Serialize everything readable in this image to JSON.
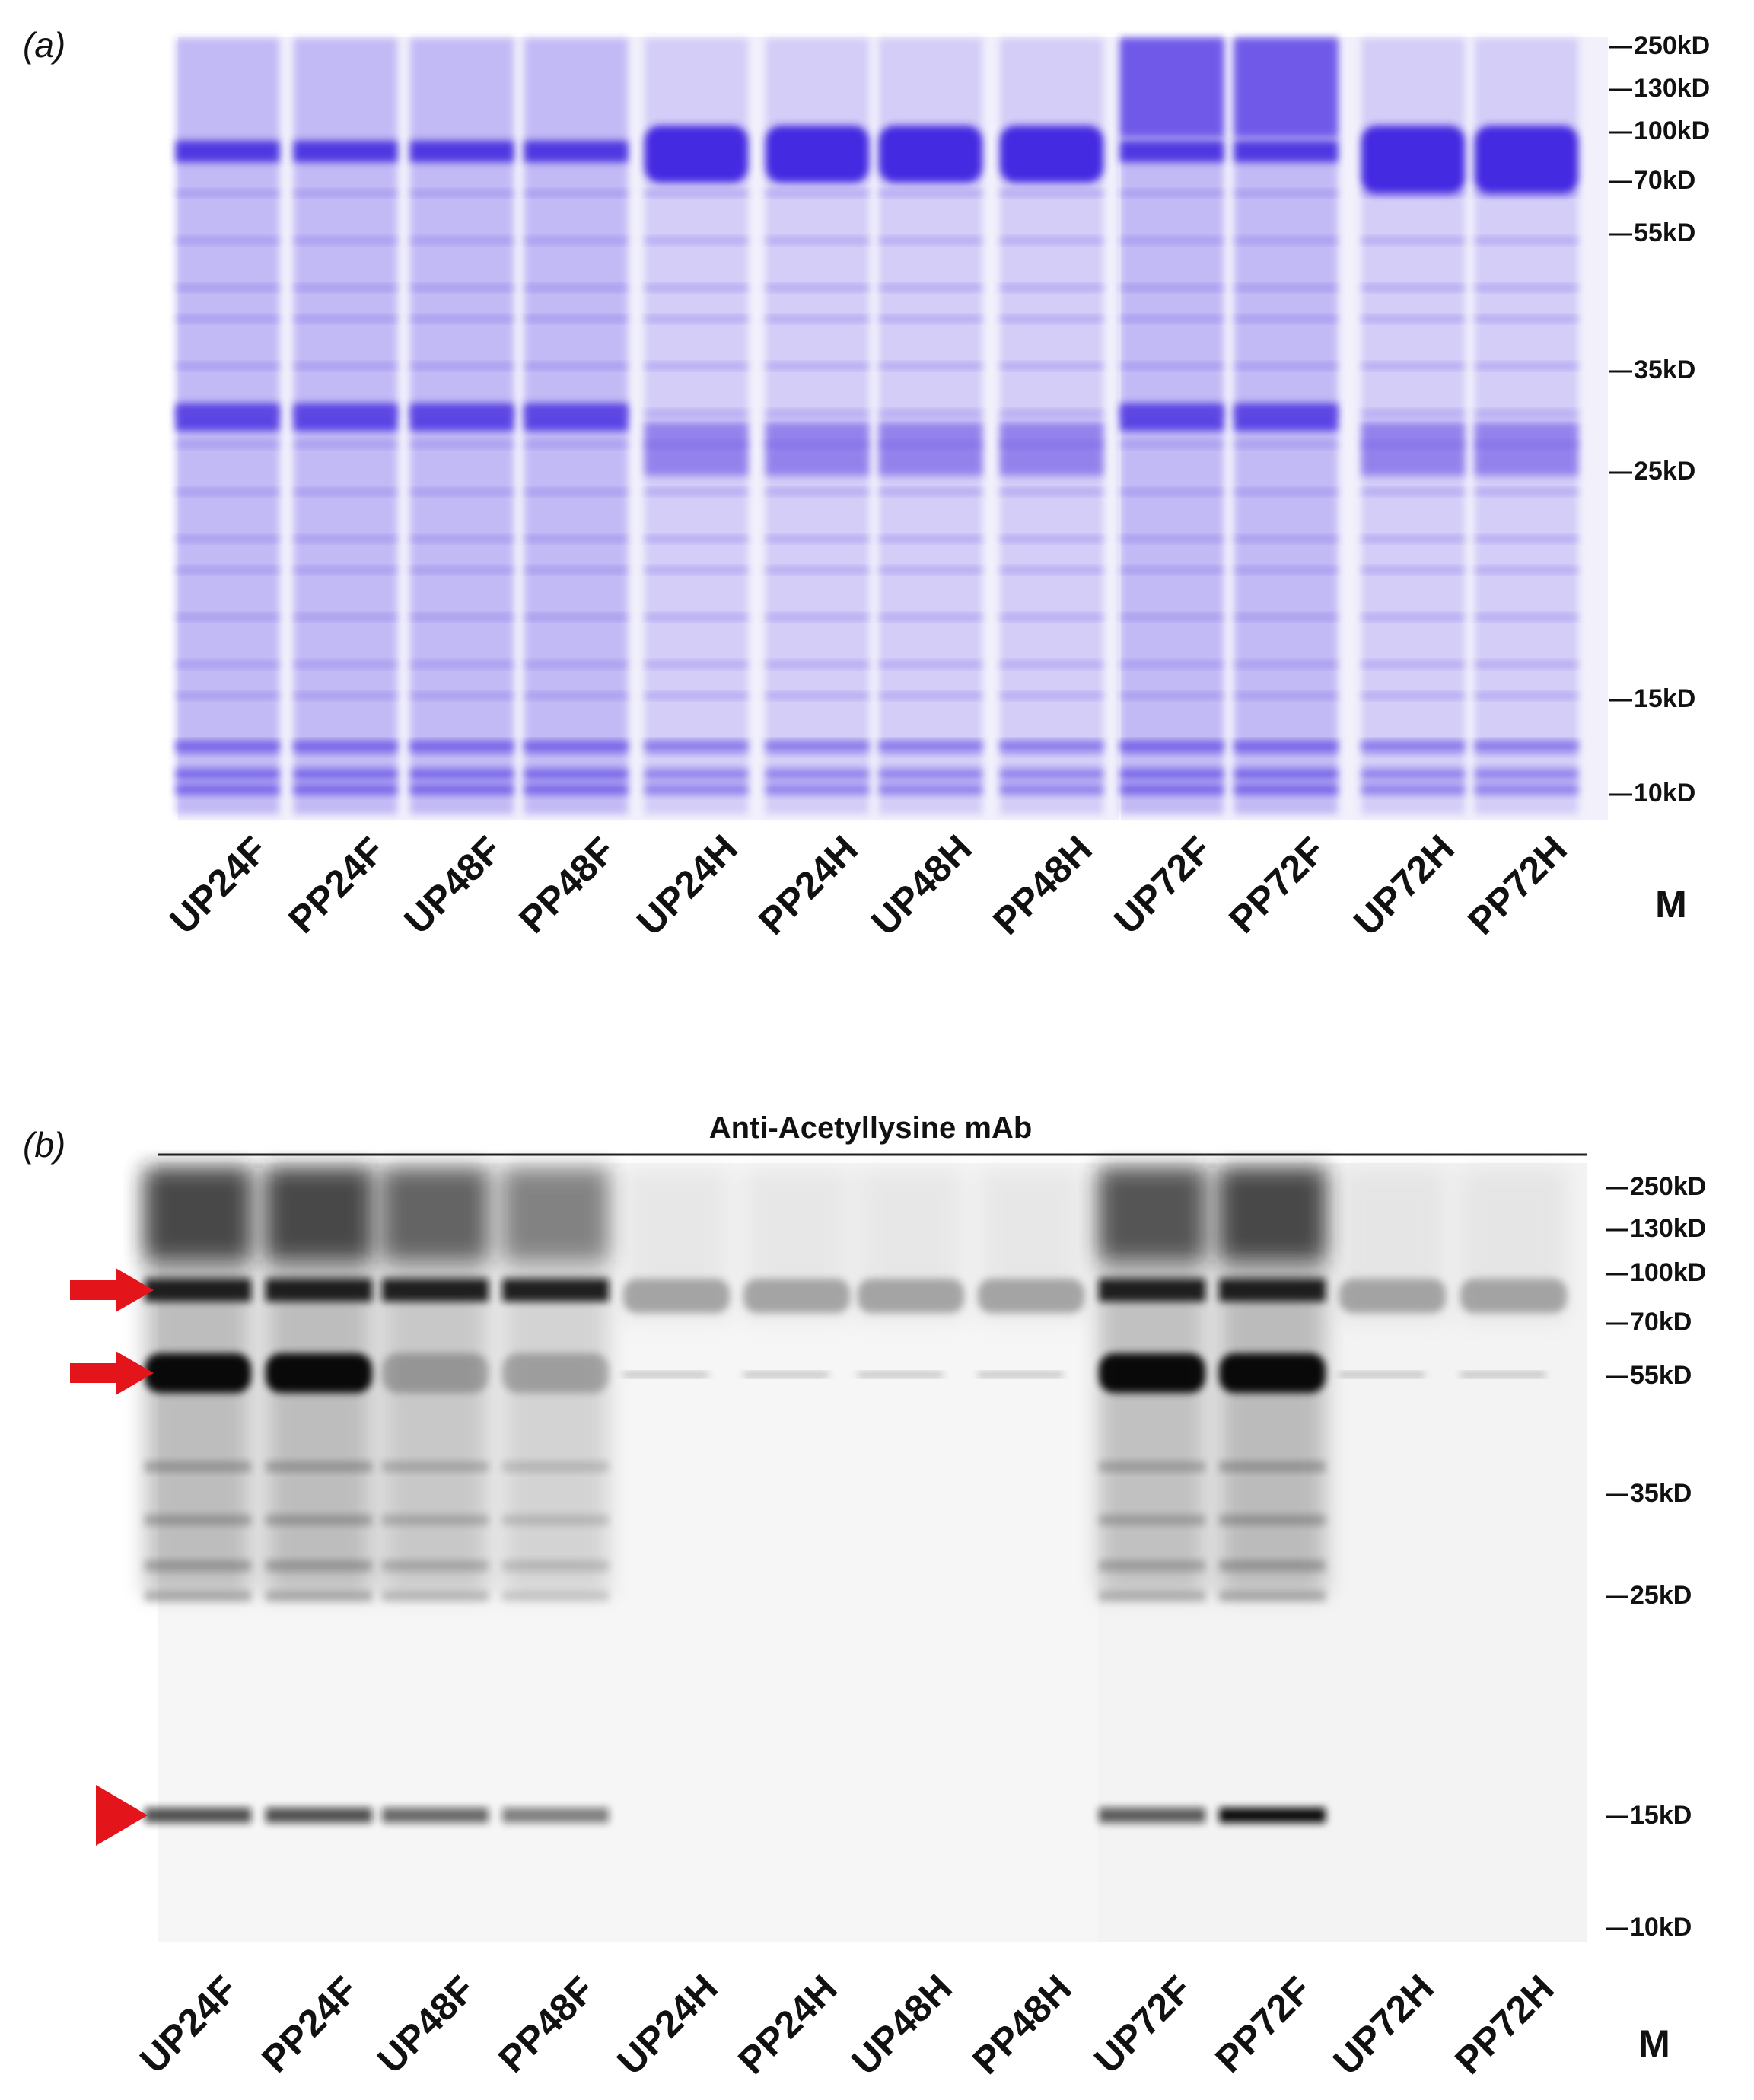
{
  "panel_a": {
    "label": "(a)",
    "lanes": [
      "UP24F",
      "PP24F",
      "UP48F",
      "PP48F",
      "UP24H",
      "PP24H",
      "UP48H",
      "PP48H",
      "UP72F",
      "PP72F",
      "UP72H",
      "PP72H"
    ],
    "marker_label": "M",
    "markers": [
      "250kD",
      "130kD",
      "100kD",
      "70kD",
      "55kD",
      "35kD",
      "25kD",
      "15kD",
      "10kD"
    ]
  },
  "panel_b": {
    "label": "(b)",
    "title": "Anti-Acetyllysine mAb",
    "lanes": [
      "UP24F",
      "PP24F",
      "UP48F",
      "PP48F",
      "UP24H",
      "PP24H",
      "UP48H",
      "PP48H",
      "UP72F",
      "PP72F",
      "UP72H",
      "PP72H"
    ],
    "marker_label": "M",
    "markers": [
      "250kD",
      "130kD",
      "100kD",
      "70kD",
      "55kD",
      "35kD",
      "25kD",
      "15kD",
      "10kD"
    ]
  }
}
